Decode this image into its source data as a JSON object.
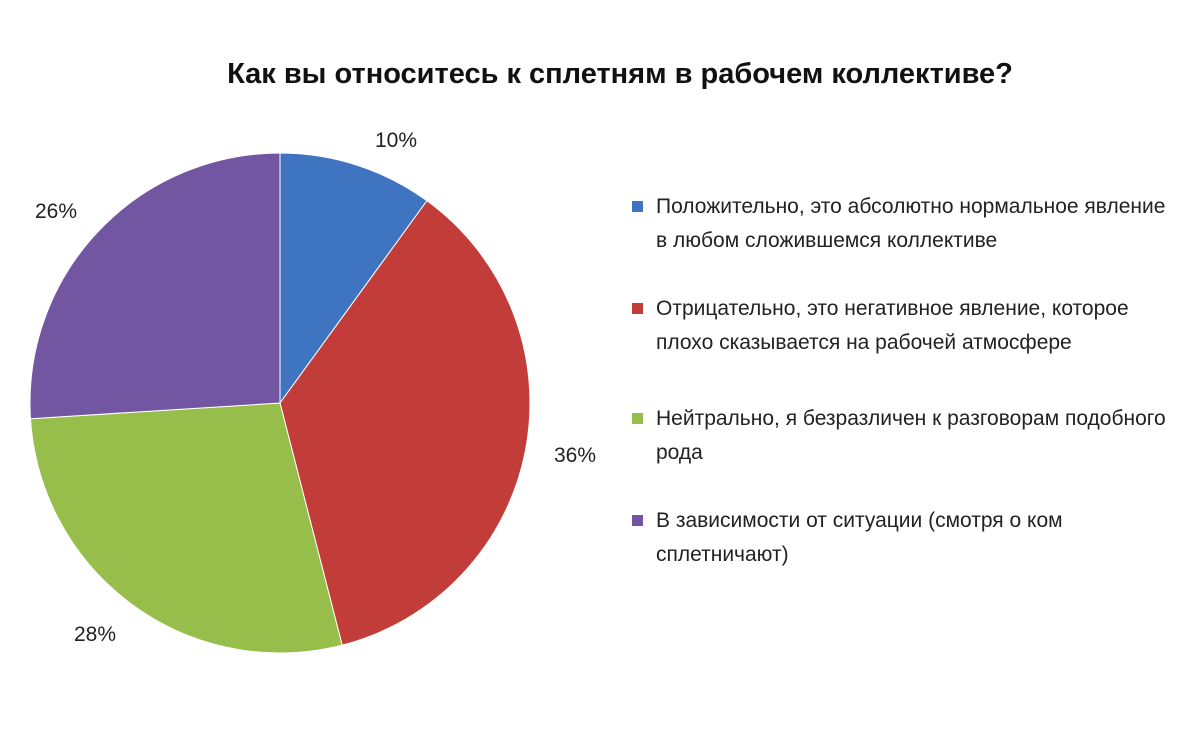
{
  "chart_data": {
    "type": "pie",
    "title": "Как вы относитесь к сплетням в рабочем коллективе?",
    "categories": [
      "Положительно, это абсолютно нормальное явление в любом сложившемся коллективе",
      "Отрицательно, это негативное явление, которое плохо сказывается на рабочей атмосфере",
      "Нейтрально, я безразличен к разговорам подобного рода",
      "В зависимости от ситуации (смотря о ком сплетничают)"
    ],
    "values": [
      10,
      36,
      28,
      26
    ],
    "data_labels": [
      "10%",
      "36%",
      "28%",
      "26%"
    ],
    "colors": [
      "#3f74c0",
      "#c23c39",
      "#97bd4a",
      "#7356a2"
    ],
    "legend_position": "right"
  }
}
